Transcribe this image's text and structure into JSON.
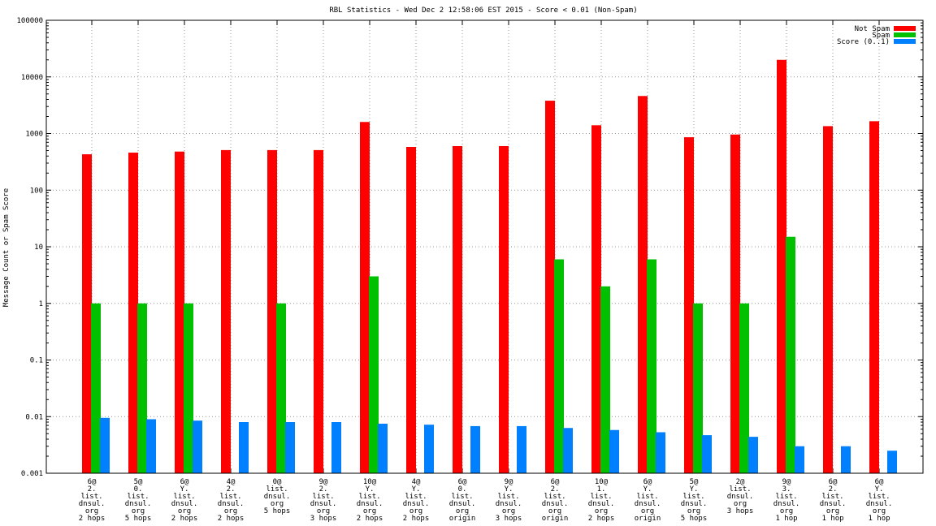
{
  "chart_data": {
    "type": "bar",
    "title": "RBL Statistics - Wed Dec  2 12:58:06 EST 2015 - Score < 0.01 (Non-Spam)",
    "xlabel": "",
    "ylabel": "Message Count or Spam Score",
    "yscale": "log",
    "ylim": [
      0.001,
      100000
    ],
    "yticks": [
      "0.001",
      "0.01",
      "0.1",
      "1",
      "10",
      "100",
      "1000",
      "10000",
      "100000"
    ],
    "grid": true,
    "legend_position": "top-right",
    "categories": [
      [
        "6@",
        "2.",
        "list.",
        "dnsul.",
        "org",
        "2 hops"
      ],
      [
        "5@",
        "0.",
        "list.",
        "dnsul.",
        "org",
        "5 hops"
      ],
      [
        "6@",
        "Y.",
        "list.",
        "dnsul.",
        "org",
        "2 hops"
      ],
      [
        "4@",
        "2.",
        "list.",
        "dnsul.",
        "org",
        "2 hops"
      ],
      [
        "0@",
        "list.",
        "dnsul.",
        "org",
        "5 hops"
      ],
      [
        "9@",
        "2.",
        "list.",
        "dnsul.",
        "org",
        "3 hops"
      ],
      [
        "10@",
        "Y.",
        "list.",
        "dnsul.",
        "org",
        "2 hops"
      ],
      [
        "4@",
        "Y.",
        "list.",
        "dnsul.",
        "org",
        "2 hops"
      ],
      [
        "6@",
        "0.",
        "list.",
        "dnsul.",
        "org",
        "origin"
      ],
      [
        "9@",
        "Y.",
        "list.",
        "dnsul.",
        "org",
        "3 hops"
      ],
      [
        "6@",
        "2.",
        "list.",
        "dnsul.",
        "org",
        "origin"
      ],
      [
        "10@",
        "1.",
        "list.",
        "dnsul.",
        "org",
        "2 hops"
      ],
      [
        "6@",
        "Y.",
        "list.",
        "dnsul.",
        "org",
        "origin"
      ],
      [
        "5@",
        "Y.",
        "list.",
        "dnsul.",
        "org",
        "5 hops"
      ],
      [
        "2@",
        "list.",
        "dnsul.",
        "org",
        "3 hops"
      ],
      [
        "9@",
        "3.",
        "list.",
        "dnsul.",
        "org",
        "1 hop"
      ],
      [
        "6@",
        "2.",
        "list.",
        "dnsul.",
        "org",
        "1 hop"
      ],
      [
        "6@",
        "Y.",
        "list.",
        "dnsul.",
        "org",
        "1 hop"
      ]
    ],
    "series": [
      {
        "name": "Not Spam",
        "color": "#ff0000",
        "values": [
          430,
          460,
          480,
          510,
          510,
          510,
          1600,
          580,
          600,
          600,
          3800,
          1400,
          4600,
          860,
          960,
          20000,
          1350,
          1650
        ]
      },
      {
        "name": "Spam",
        "color": "#00c000",
        "values": [
          1,
          1,
          1,
          null,
          1,
          null,
          3,
          null,
          null,
          null,
          6,
          2,
          6,
          1,
          1,
          15,
          null,
          null
        ]
      },
      {
        "name": "Score (0..1)",
        "color": "#0080ff",
        "values": [
          0.0095,
          0.009,
          0.0085,
          0.008,
          0.008,
          0.008,
          0.0075,
          0.0072,
          0.0068,
          0.0068,
          0.0063,
          0.0058,
          0.0053,
          0.0047,
          0.0044,
          0.003,
          0.003,
          0.0025
        ]
      }
    ]
  }
}
